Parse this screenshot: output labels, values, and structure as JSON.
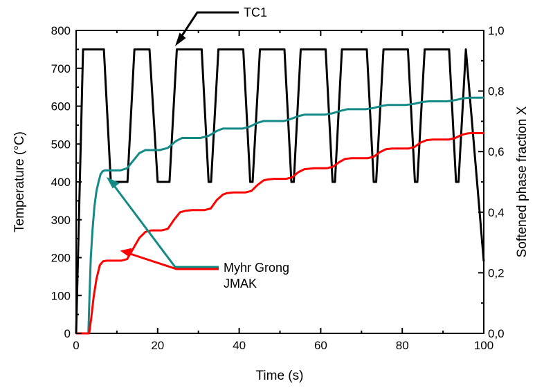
{
  "chart_data": {
    "type": "line",
    "xlabel": "Time (s)",
    "ylabel_left": "Temperature (°C)",
    "ylabel_right": "Softened phase fraction X",
    "xlim": [
      0,
      100
    ],
    "ylim_left": [
      0,
      800
    ],
    "ylim_right": [
      0,
      1.0
    ],
    "grid": false,
    "x_ticks": [
      "0",
      "20",
      "40",
      "60",
      "80",
      "100"
    ],
    "y_left_ticks": [
      "0",
      "100",
      "200",
      "300",
      "400",
      "500",
      "600",
      "700",
      "800"
    ],
    "y_right_ticks": [
      "0,0",
      "0,2",
      "0,4",
      "0,6",
      "0,8",
      "1,0"
    ],
    "annotations": {
      "tc1": "TC1",
      "myhr": "Myhr Grong",
      "jmak": "JMAK"
    },
    "colors": {
      "tc1": "#000000",
      "myhr": "#138a86",
      "jmak": "#ff0000"
    },
    "series": [
      {
        "name": "TC1",
        "axis": "left",
        "x": [
          0,
          1.7,
          2.2,
          3.9,
          4.5,
          6.2,
          6.8,
          8.5,
          10.0,
          12.0,
          12.6,
          14.3,
          14.9,
          16.6,
          18.0,
          20.0,
          20.6,
          22.3,
          22.9,
          24.7,
          28.0,
          30.2,
          30.8,
          32.5,
          33.1,
          34.9,
          38.3,
          40.4,
          41.0,
          42.7,
          43.3,
          45.1,
          48.5,
          50.5,
          51.1,
          52.8,
          53.4,
          55.1,
          58.6,
          60.6,
          61.2,
          62.9,
          63.5,
          65.2,
          68.6,
          70.7,
          71.3,
          73.0,
          73.6,
          75.4,
          78.7,
          80.8,
          81.4,
          83.1,
          83.7,
          85.5,
          89.0,
          90.9,
          91.5,
          93.2,
          93.8,
          95.6,
          100
        ],
        "y": [
          0,
          750,
          750,
          750,
          750,
          750,
          750,
          400,
          400,
          400,
          400,
          750,
          750,
          750,
          750,
          400,
          400,
          400,
          400,
          750,
          750,
          750,
          750,
          400,
          400,
          750,
          750,
          750,
          750,
          400,
          400,
          750,
          750,
          750,
          750,
          400,
          400,
          750,
          750,
          750,
          750,
          400,
          400,
          750,
          750,
          750,
          750,
          400,
          400,
          750,
          750,
          750,
          750,
          400,
          400,
          750,
          750,
          750,
          750,
          400,
          400,
          750,
          190
        ]
      },
      {
        "name": "Myhr Grong",
        "axis": "right",
        "x": [
          3.0,
          3.3,
          3.6,
          4.0,
          4.5,
          5.0,
          5.5,
          6.0,
          6.5,
          7.0,
          10.8,
          12.5,
          14.0,
          15.5,
          17.0,
          20.5,
          22.5,
          24.5,
          26.0,
          30.5,
          32.5,
          34.5,
          36.0,
          40.8,
          42.5,
          44.5,
          46.0,
          51.0,
          52.5,
          54.5,
          56.0,
          61.0,
          63.0,
          65.0,
          66.5,
          71.0,
          73.0,
          75.0,
          76.5,
          81.0,
          83.0,
          85.0,
          86.5,
          91.0,
          93.0,
          95.0,
          96.5,
          100
        ],
        "y": [
          0.0,
          0.13,
          0.25,
          0.34,
          0.42,
          0.47,
          0.5,
          0.525,
          0.535,
          0.538,
          0.538,
          0.545,
          0.57,
          0.595,
          0.605,
          0.605,
          0.612,
          0.635,
          0.645,
          0.645,
          0.652,
          0.668,
          0.676,
          0.676,
          0.682,
          0.695,
          0.701,
          0.701,
          0.707,
          0.717,
          0.722,
          0.722,
          0.727,
          0.735,
          0.74,
          0.74,
          0.744,
          0.751,
          0.754,
          0.754,
          0.758,
          0.764,
          0.766,
          0.766,
          0.77,
          0.776,
          0.778,
          0.778
        ]
      },
      {
        "name": "JMAK",
        "axis": "right",
        "x": [
          0,
          3.2,
          3.7,
          4.3,
          5.0,
          5.8,
          6.6,
          7.5,
          11.0,
          12.5,
          14.0,
          15.5,
          17.0,
          18.5,
          21.0,
          22.5,
          24.0,
          25.5,
          27.0,
          28.5,
          31.5,
          33.0,
          34.5,
          36.0,
          37.0,
          38.5,
          41.5,
          43.0,
          44.5,
          46.0,
          47.0,
          48.5,
          51.5,
          53.0,
          54.5,
          56.0,
          57.5,
          58.5,
          61.5,
          63.0,
          64.5,
          66.0,
          67.5,
          68.5,
          71.5,
          73.0,
          74.5,
          76.0,
          77.5,
          78.5,
          81.5,
          83.0,
          84.5,
          86.0,
          87.5,
          88.5,
          91.5,
          93.0,
          94.5,
          96.0,
          97.0,
          100
        ],
        "y": [
          0,
          0,
          0.05,
          0.12,
          0.18,
          0.225,
          0.238,
          0.24,
          0.24,
          0.245,
          0.28,
          0.315,
          0.335,
          0.34,
          0.34,
          0.345,
          0.375,
          0.4,
          0.405,
          0.407,
          0.407,
          0.412,
          0.44,
          0.458,
          0.463,
          0.465,
          0.465,
          0.47,
          0.49,
          0.505,
          0.508,
          0.51,
          0.51,
          0.515,
          0.532,
          0.542,
          0.544,
          0.545,
          0.545,
          0.55,
          0.565,
          0.576,
          0.578,
          0.578,
          0.578,
          0.583,
          0.598,
          0.608,
          0.61,
          0.61,
          0.61,
          0.615,
          0.63,
          0.638,
          0.64,
          0.64,
          0.64,
          0.645,
          0.655,
          0.66,
          0.661,
          0.661
        ]
      }
    ]
  }
}
